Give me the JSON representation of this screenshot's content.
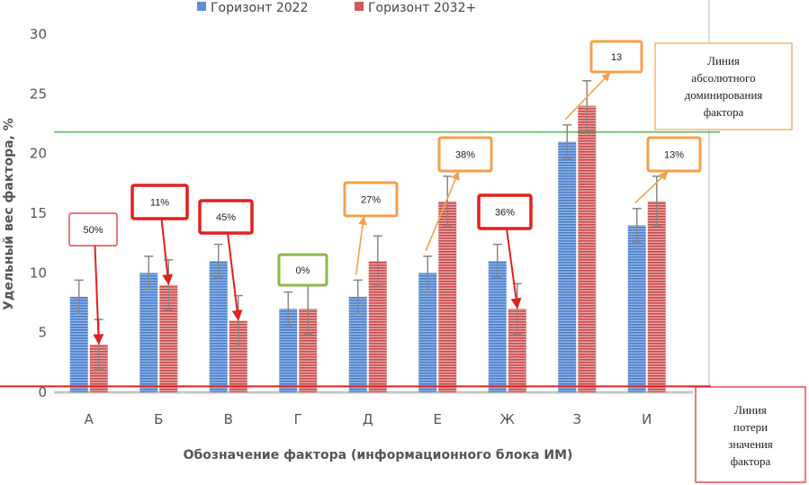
{
  "chart_data": {
    "type": "bar",
    "categories": [
      "А",
      "Б",
      "В",
      "Г",
      "Д",
      "Е",
      "Ж",
      "З",
      "И"
    ],
    "series": [
      {
        "name": "Горизонт 2022",
        "values": [
          8,
          10,
          11,
          7,
          8,
          10,
          11,
          21,
          14
        ],
        "errors": [
          1.4,
          1.4,
          1.4,
          1.4,
          1.4,
          1.4,
          1.4,
          1.4,
          1.4
        ],
        "color": "#5b8fd4"
      },
      {
        "name": "Горизонт 2032+",
        "values": [
          4,
          9,
          6,
          7,
          11,
          16,
          7,
          24,
          16
        ],
        "errors": [
          2.1,
          2.1,
          2.1,
          2.1,
          2.1,
          2.1,
          2.1,
          2.1,
          2.1
        ],
        "color": "#d05a5a"
      }
    ],
    "xlabel": "Обозначение фактора (информационного блока ИМ)",
    "ylabel": "Удельный вес фактора, %",
    "ylim": [
      0,
      30
    ],
    "yticks": [
      0,
      5,
      10,
      15,
      20,
      25,
      30
    ],
    "grid": false,
    "legend_position": "top",
    "reference_lines": [
      {
        "value": 21.8,
        "color": "#2fae3a",
        "note": "Линия абсолютного доминирования фактора"
      },
      {
        "value": 0.5,
        "color": "#e02020",
        "note": "Линия потери значения фактора"
      }
    ],
    "annotations": [
      {
        "category": "А",
        "label": "50%",
        "direction": "decrease",
        "color": "#e02020"
      },
      {
        "category": "Б",
        "label": "11%",
        "direction": "decrease",
        "color": "#e02020"
      },
      {
        "category": "В",
        "label": "45%",
        "direction": "decrease",
        "color": "#e02020"
      },
      {
        "category": "Г",
        "label": "0%",
        "direction": "none",
        "color": "#8cb84a"
      },
      {
        "category": "Д",
        "label": "27%",
        "direction": "increase",
        "color": "#f5a04a"
      },
      {
        "category": "Е",
        "label": "38%",
        "direction": "increase",
        "color": "#f5a04a"
      },
      {
        "category": "Ж",
        "label": "36%",
        "direction": "decrease",
        "color": "#e02020"
      },
      {
        "category": "З",
        "label": "13",
        "direction": "increase",
        "color": "#f5a04a"
      },
      {
        "category": "И",
        "label": "13%",
        "direction": "increase",
        "color": "#f5a04a"
      }
    ]
  }
}
